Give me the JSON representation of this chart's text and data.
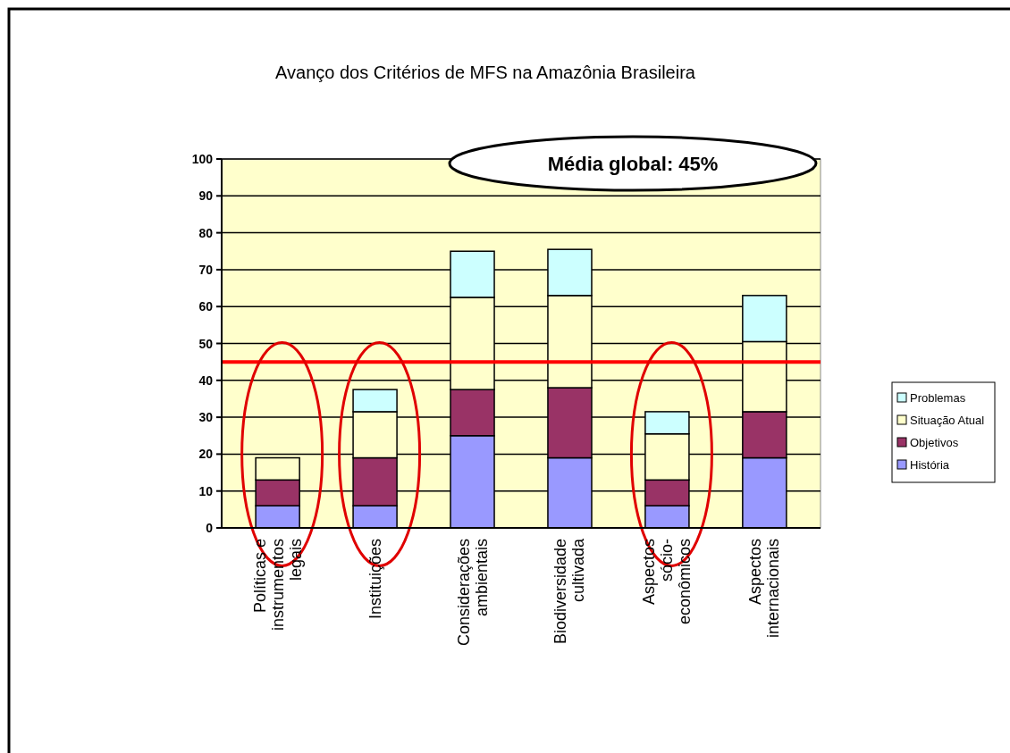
{
  "chart_data": {
    "type": "bar",
    "title": "Avanço dos Critérios de MFS na Amazônia Brasileira",
    "categories": [
      "Políticas e instrumentos legais",
      "Instituições",
      "Considerações ambientais",
      "Biodiversidade cultivada",
      "Aspectos sócio-econômicos",
      "Aspectos internacionais"
    ],
    "stacked": true,
    "series": [
      {
        "name": "História",
        "color": "#9999ff",
        "values": [
          6,
          6,
          25,
          19,
          6,
          19
        ]
      },
      {
        "name": "Objetivos",
        "color": "#993366",
        "values": [
          7,
          13,
          12.5,
          19,
          7,
          12.5
        ]
      },
      {
        "name": "Situação Atual",
        "color": "#ffffcc",
        "values": [
          6,
          12.5,
          25,
          25,
          12.5,
          19
        ]
      },
      {
        "name": "Problemas",
        "color": "#ccffff",
        "values": [
          0,
          6,
          12.5,
          12.5,
          6,
          12.5
        ]
      }
    ],
    "ylim": [
      0,
      100
    ],
    "yticks": [
      0,
      10,
      20,
      30,
      40,
      50,
      60,
      70,
      80,
      90,
      100
    ],
    "grid": "y",
    "legend": "right",
    "ref_lines": [
      {
        "axis": "y",
        "value": 45,
        "color": "#ff0000"
      }
    ],
    "annotations": [
      "Média global: 45%"
    ]
  }
}
